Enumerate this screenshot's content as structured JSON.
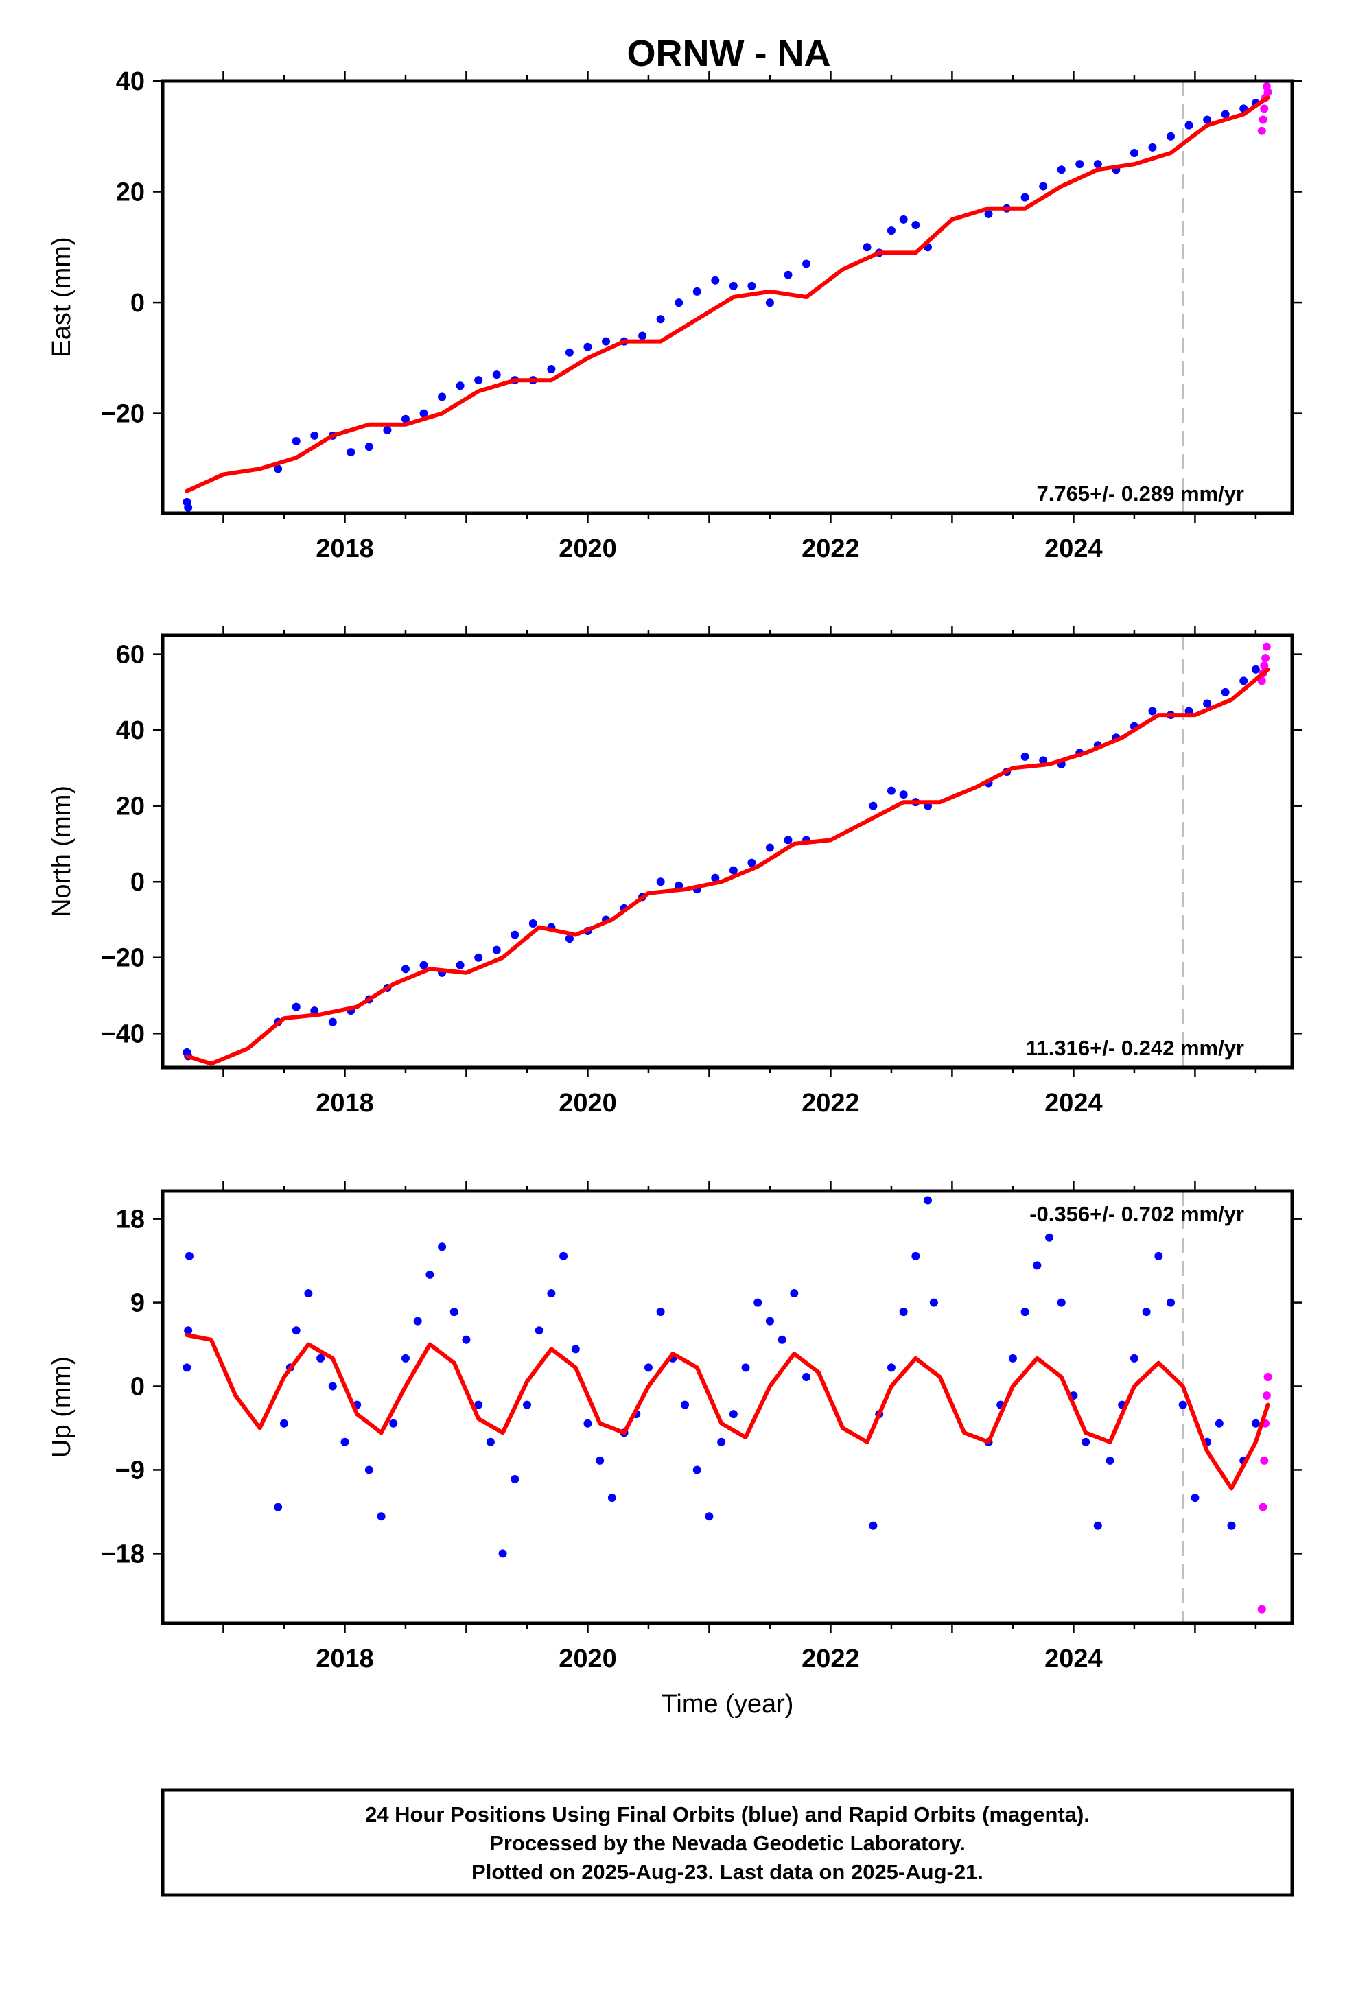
{
  "title": "ORNW - NA",
  "footer": {
    "line1": "24 Hour Positions Using Final Orbits (blue) and Rapid Orbits (magenta).",
    "line2": "Processed by the Nevada Geodetic Laboratory.",
    "line3": "Plotted on 2025-Aug-23. Last data on 2025-Aug-21."
  },
  "colors": {
    "final": "#0000ff",
    "rapid": "#ff00ff",
    "model": "#ff0000",
    "marker_line": "#c0c0c0"
  },
  "chart_data": [
    {
      "type": "scatter",
      "ylabel": "East (mm)",
      "xlabel": "",
      "rate_label": "7.765+/- 0.289 mm/yr",
      "xlim": [
        2016.5,
        2025.8
      ],
      "ylim": [
        -38,
        40
      ],
      "xticks": [
        2018,
        2020,
        2022,
        2024
      ],
      "xtick_labels": [
        "2018",
        "2020",
        "2022",
        "2024"
      ],
      "yticks": [
        -20,
        0,
        20,
        40
      ],
      "ytick_labels": [
        "−20",
        "0",
        "20",
        "40"
      ],
      "vline_x": 2024.9,
      "series": [
        {
          "role": "final",
          "x": [
            2016.7,
            2016.71,
            2017.45,
            2017.6,
            2017.75,
            2017.9,
            2018.05,
            2018.2,
            2018.35,
            2018.5,
            2018.65,
            2018.8,
            2018.95,
            2019.1,
            2019.25,
            2019.4,
            2019.55,
            2019.7,
            2019.85,
            2020.0,
            2020.15,
            2020.3,
            2020.45,
            2020.6,
            2020.75,
            2020.9,
            2021.05,
            2021.2,
            2021.35,
            2021.5,
            2021.65,
            2021.8,
            2022.3,
            2022.4,
            2022.5,
            2022.6,
            2022.7,
            2022.8,
            2023.3,
            2023.45,
            2023.6,
            2023.75,
            2023.9,
            2024.05,
            2024.2,
            2024.35,
            2024.5,
            2024.65,
            2024.8,
            2024.95,
            2025.1,
            2025.25,
            2025.4,
            2025.5
          ],
          "y": [
            -36,
            -37,
            -30,
            -25,
            -24,
            -24,
            -27,
            -26,
            -23,
            -21,
            -20,
            -17,
            -15,
            -14,
            -13,
            -14,
            -14,
            -12,
            -9,
            -8,
            -7,
            -7,
            -6,
            -3,
            0,
            2,
            4,
            3,
            3,
            0,
            5,
            7,
            10,
            9,
            13,
            15,
            14,
            10,
            16,
            17,
            19,
            21,
            24,
            25,
            25,
            24,
            27,
            28,
            30,
            32,
            33,
            34,
            35,
            36
          ]
        },
        {
          "role": "rapid",
          "x": [
            2025.55,
            2025.56,
            2025.57,
            2025.58,
            2025.59,
            2025.6
          ],
          "y": [
            31,
            33,
            35,
            37,
            39,
            38
          ]
        },
        {
          "role": "model",
          "x": [
            2016.7,
            2017.0,
            2017.3,
            2017.6,
            2017.9,
            2018.2,
            2018.5,
            2018.8,
            2019.1,
            2019.4,
            2019.7,
            2020.0,
            2020.3,
            2020.6,
            2020.9,
            2021.2,
            2021.5,
            2021.8,
            2022.1,
            2022.4,
            2022.7,
            2023.0,
            2023.3,
            2023.6,
            2023.9,
            2024.2,
            2024.5,
            2024.8,
            2025.1,
            2025.4,
            2025.6
          ],
          "y": [
            -34,
            -31,
            -30,
            -28,
            -24,
            -22,
            -22,
            -20,
            -16,
            -14,
            -14,
            -10,
            -7,
            -7,
            -3,
            1,
            2,
            1,
            6,
            9,
            9,
            15,
            17,
            17,
            21,
            24,
            25,
            27,
            32,
            34,
            37
          ]
        }
      ]
    },
    {
      "type": "scatter",
      "ylabel": "North (mm)",
      "xlabel": "",
      "rate_label": "11.316+/- 0.242 mm/yr",
      "xlim": [
        2016.5,
        2025.8
      ],
      "ylim": [
        -49,
        65
      ],
      "xticks": [
        2018,
        2020,
        2022,
        2024
      ],
      "xtick_labels": [
        "2018",
        "2020",
        "2022",
        "2024"
      ],
      "yticks": [
        -40,
        -20,
        0,
        20,
        40,
        60
      ],
      "ytick_labels": [
        "−40",
        "−20",
        "0",
        "20",
        "40",
        "60"
      ],
      "vline_x": 2024.9,
      "series": [
        {
          "role": "final",
          "x": [
            2016.7,
            2016.71,
            2017.45,
            2017.6,
            2017.75,
            2017.9,
            2018.05,
            2018.2,
            2018.35,
            2018.5,
            2018.65,
            2018.8,
            2018.95,
            2019.1,
            2019.25,
            2019.4,
            2019.55,
            2019.7,
            2019.85,
            2020.0,
            2020.15,
            2020.3,
            2020.45,
            2020.6,
            2020.75,
            2020.9,
            2021.05,
            2021.2,
            2021.35,
            2021.5,
            2021.65,
            2021.8,
            2022.35,
            2022.5,
            2022.6,
            2022.7,
            2022.8,
            2023.3,
            2023.45,
            2023.6,
            2023.75,
            2023.9,
            2024.05,
            2024.2,
            2024.35,
            2024.5,
            2024.65,
            2024.8,
            2024.95,
            2025.1,
            2025.25,
            2025.4,
            2025.5
          ],
          "y": [
            -45,
            -46,
            -37,
            -33,
            -34,
            -37,
            -34,
            -31,
            -28,
            -23,
            -22,
            -24,
            -22,
            -20,
            -18,
            -14,
            -11,
            -12,
            -15,
            -13,
            -10,
            -7,
            -4,
            0,
            -1,
            -2,
            1,
            3,
            5,
            9,
            11,
            11,
            20,
            24,
            23,
            21,
            20,
            26,
            29,
            33,
            32,
            31,
            34,
            36,
            38,
            41,
            45,
            44,
            45,
            47,
            50,
            53,
            56
          ]
        },
        {
          "role": "rapid",
          "x": [
            2025.55,
            2025.56,
            2025.57,
            2025.58,
            2025.59
          ],
          "y": [
            53,
            55,
            57,
            59,
            62
          ]
        },
        {
          "role": "model",
          "x": [
            2016.7,
            2016.9,
            2017.2,
            2017.5,
            2017.8,
            2018.1,
            2018.4,
            2018.7,
            2019.0,
            2019.3,
            2019.6,
            2019.9,
            2020.2,
            2020.5,
            2020.8,
            2021.1,
            2021.4,
            2021.7,
            2022.0,
            2022.3,
            2022.6,
            2022.9,
            2023.2,
            2023.5,
            2023.8,
            2024.1,
            2024.4,
            2024.7,
            2025.0,
            2025.3,
            2025.6
          ],
          "y": [
            -46,
            -48,
            -44,
            -36,
            -35,
            -33,
            -27,
            -23,
            -24,
            -20,
            -12,
            -14,
            -10,
            -3,
            -2,
            0,
            4,
            10,
            11,
            16,
            21,
            21,
            25,
            30,
            31,
            34,
            38,
            44,
            44,
            48,
            56
          ]
        }
      ]
    },
    {
      "type": "scatter",
      "ylabel": "Up (mm)",
      "xlabel": "Time (year)",
      "rate_label": "-0.356+/- 0.702 mm/yr",
      "xlim": [
        2016.5,
        2025.8
      ],
      "ylim": [
        -25.5,
        21
      ],
      "xticks": [
        2018,
        2020,
        2022,
        2024
      ],
      "xtick_labels": [
        "2018",
        "2020",
        "2022",
        "2024"
      ],
      "yticks": [
        -18,
        -9,
        0,
        9,
        18
      ],
      "ytick_labels": [
        "−18",
        "−9",
        "0",
        "9",
        "18"
      ],
      "vline_x": 2024.9,
      "series": [
        {
          "role": "final",
          "x": [
            2016.7,
            2016.71,
            2016.72,
            2017.45,
            2017.5,
            2017.55,
            2017.6,
            2017.7,
            2017.8,
            2017.9,
            2018.0,
            2018.1,
            2018.2,
            2018.3,
            2018.4,
            2018.5,
            2018.6,
            2018.7,
            2018.8,
            2018.9,
            2019.0,
            2019.1,
            2019.2,
            2019.3,
            2019.4,
            2019.5,
            2019.6,
            2019.7,
            2019.8,
            2019.9,
            2020.0,
            2020.1,
            2020.2,
            2020.3,
            2020.4,
            2020.5,
            2020.6,
            2020.7,
            2020.8,
            2020.9,
            2021.0,
            2021.1,
            2021.2,
            2021.3,
            2021.4,
            2021.5,
            2021.6,
            2021.7,
            2021.8,
            2022.35,
            2022.4,
            2022.5,
            2022.6,
            2022.7,
            2022.8,
            2022.85,
            2023.3,
            2023.4,
            2023.5,
            2023.6,
            2023.7,
            2023.8,
            2023.9,
            2024.0,
            2024.1,
            2024.2,
            2024.3,
            2024.4,
            2024.5,
            2024.6,
            2024.7,
            2024.8,
            2024.9,
            2025.0,
            2025.1,
            2025.2,
            2025.3,
            2025.4,
            2025.5
          ],
          "y": [
            2,
            6,
            14,
            -13,
            -4,
            2,
            6,
            10,
            3,
            0,
            -6,
            -2,
            -9,
            -14,
            -4,
            3,
            7,
            12,
            15,
            8,
            5,
            -2,
            -6,
            -18,
            -10,
            -2,
            6,
            10,
            14,
            4,
            -4,
            -8,
            -12,
            -5,
            -3,
            2,
            8,
            3,
            -2,
            -9,
            -14,
            -6,
            -3,
            2,
            9,
            7,
            5,
            10,
            1,
            -15,
            -3,
            2,
            8,
            14,
            20,
            9,
            -6,
            -2,
            3,
            8,
            13,
            16,
            9,
            -1,
            -6,
            -15,
            -8,
            -2,
            3,
            8,
            14,
            9,
            -2,
            -12,
            -6,
            -4,
            -15,
            -8,
            -4
          ]
        },
        {
          "role": "rapid",
          "x": [
            2025.55,
            2025.56,
            2025.57,
            2025.58,
            2025.59,
            2025.6
          ],
          "y": [
            -24,
            -13,
            -8,
            -4,
            -1,
            1
          ]
        },
        {
          "role": "model",
          "x": [
            2016.7,
            2016.9,
            2017.1,
            2017.3,
            2017.5,
            2017.7,
            2017.9,
            2018.1,
            2018.3,
            2018.5,
            2018.7,
            2018.9,
            2019.1,
            2019.3,
            2019.5,
            2019.7,
            2019.9,
            2020.1,
            2020.3,
            2020.5,
            2020.7,
            2020.9,
            2021.1,
            2021.3,
            2021.5,
            2021.7,
            2021.9,
            2022.1,
            2022.3,
            2022.5,
            2022.7,
            2022.9,
            2023.1,
            2023.3,
            2023.5,
            2023.7,
            2023.9,
            2024.1,
            2024.3,
            2024.5,
            2024.7,
            2024.9,
            2025.1,
            2025.3,
            2025.5,
            2025.6
          ],
          "y": [
            5.5,
            5,
            -1,
            -4.5,
            1,
            4.5,
            3,
            -3,
            -5,
            0,
            4.5,
            2.5,
            -3.5,
            -5,
            0.5,
            4,
            2,
            -4,
            -5,
            0,
            3.5,
            2,
            -4,
            -5.5,
            0,
            3.5,
            1.5,
            -4.5,
            -6,
            0,
            3,
            1,
            -5,
            -6,
            0,
            3,
            1,
            -5,
            -6,
            0,
            2.5,
            0,
            -7,
            -11,
            -6,
            -2
          ]
        }
      ]
    }
  ]
}
